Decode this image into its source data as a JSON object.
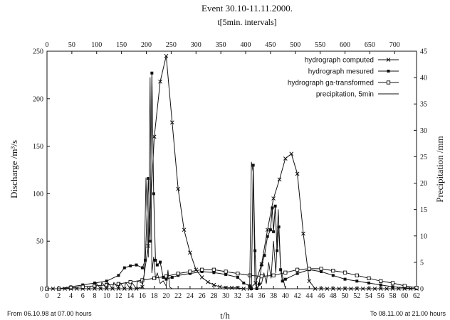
{
  "chart_data": {
    "type": "line",
    "title": "Event 30.10-11.11.2000.",
    "top_axis_label": "t[5min. intervals]",
    "xlabel": "t/h",
    "ylabel_left": "Discharge /m³/s",
    "ylabel_right": "Precipitation /mm",
    "note_left": "From 06.10.98 at 07.00 hours",
    "note_right": "To 08.11.00 at 21.00 hours",
    "xlim": [
      0,
      62
    ],
    "ylim_left": [
      0,
      250
    ],
    "ylim_right": [
      0,
      45
    ],
    "top_xlim": [
      0,
      744
    ],
    "x_ticks": [
      0,
      2,
      4,
      6,
      8,
      10,
      12,
      14,
      16,
      18,
      20,
      22,
      24,
      26,
      28,
      30,
      32,
      34,
      36,
      38,
      40,
      42,
      44,
      46,
      48,
      50,
      52,
      54,
      56,
      58,
      60,
      62
    ],
    "top_ticks": [
      0,
      50,
      100,
      150,
      200,
      250,
      300,
      350,
      400,
      450,
      500,
      550,
      600,
      650,
      700
    ],
    "left_ticks": [
      0,
      50,
      100,
      150,
      200,
      250
    ],
    "right_ticks": [
      0,
      5,
      10,
      15,
      20,
      25,
      30,
      35,
      40,
      45
    ],
    "grid": false,
    "legend_position": "top-right",
    "series": [
      {
        "name": "hydrograph computed",
        "axis": "left",
        "marker": "x",
        "x": [
          0,
          1,
          2,
          3,
          4,
          5,
          6,
          7,
          8,
          9,
          10,
          11,
          12,
          13,
          14,
          15,
          16,
          17,
          18,
          19,
          20,
          21,
          22,
          23,
          24,
          25,
          26,
          27,
          28,
          29,
          30,
          31,
          32,
          33,
          34,
          35,
          36,
          37,
          38,
          39,
          40,
          41,
          42,
          43,
          44,
          45,
          46,
          47,
          48,
          49,
          50,
          51,
          52,
          53,
          54,
          55,
          56,
          57,
          58,
          59,
          60,
          61,
          62
        ],
        "y": [
          0,
          0,
          0,
          0,
          0,
          0,
          0,
          0,
          0,
          0,
          0,
          0,
          0,
          0,
          0,
          0,
          2,
          45,
          160,
          218,
          245,
          175,
          105,
          62,
          38,
          20,
          12,
          7,
          4,
          2,
          1,
          1,
          1,
          0,
          0,
          6,
          26,
          62,
          95,
          115,
          137,
          142,
          121,
          58,
          8,
          0,
          0,
          0,
          0,
          0,
          0,
          0,
          0,
          0,
          0,
          0,
          0,
          0,
          0,
          0,
          0,
          0,
          0
        ]
      },
      {
        "name": "hydrograph mesured",
        "axis": "left",
        "marker": "square-filled",
        "x": [
          0,
          2,
          4,
          6,
          8,
          10,
          12,
          13,
          14,
          15,
          16,
          16.5,
          17,
          17.3,
          17.6,
          17.9,
          18.2,
          18.5,
          19,
          19.5,
          20,
          21,
          22,
          24,
          26,
          28,
          30,
          32,
          33,
          34,
          34.3,
          34.6,
          34.9,
          35.2,
          35.6,
          36,
          36.5,
          37,
          37.5,
          37.8,
          38,
          38.3,
          38.6,
          38.9,
          39.2,
          39.5,
          40,
          42,
          44,
          46,
          48,
          50,
          52,
          54,
          56,
          58,
          60,
          62
        ],
        "y": [
          0,
          0,
          2,
          4,
          6,
          8,
          14,
          22,
          24,
          25,
          22,
          30,
          116,
          50,
          227,
          100,
          30,
          25,
          28,
          12,
          10,
          12,
          14,
          16,
          18,
          17,
          15,
          12,
          6,
          3,
          0,
          130,
          40,
          0,
          5,
          25,
          35,
          55,
          62,
          85,
          60,
          87,
          40,
          65,
          20,
          8,
          10,
          16,
          20,
          18,
          14,
          10,
          8,
          6,
          4,
          2,
          1,
          0
        ]
      },
      {
        "name": "hydrograph ga-transformed",
        "axis": "left",
        "marker": "square-open",
        "x": [
          0,
          2,
          4,
          6,
          8,
          10,
          12,
          14,
          16,
          18,
          20,
          22,
          24,
          26,
          28,
          30,
          32,
          34,
          36,
          38,
          40,
          42,
          44,
          46,
          48,
          50,
          52,
          54,
          56,
          58,
          60,
          62
        ],
        "y": [
          0,
          0,
          1,
          2,
          3,
          4,
          5,
          7,
          9,
          11,
          13,
          16,
          18,
          20,
          20,
          18,
          16,
          14,
          13,
          14,
          17,
          20,
          21,
          21,
          19,
          17,
          14,
          11,
          8,
          6,
          3,
          1
        ]
      },
      {
        "name": "precipitation, 5min",
        "axis": "right",
        "marker": "none",
        "x": [
          0,
          2,
          4,
          6,
          8,
          8.2,
          9,
          9.2,
          10,
          10.2,
          11,
          11.2,
          12,
          12.2,
          13,
          13.2,
          14,
          14.2,
          15,
          15.2,
          16,
          16.3,
          16.6,
          17,
          17.3,
          17.6,
          17.9,
          18.2,
          18.5,
          19,
          19.5,
          20,
          20.3,
          20.6,
          21,
          22,
          24,
          26,
          28,
          30,
          32,
          34,
          34.3,
          34.6,
          34.9,
          35.2,
          35.5,
          36,
          36.4,
          36.8,
          37.2,
          37.6,
          38,
          38.4,
          38.8,
          39.2,
          39.6,
          40,
          42,
          44,
          46,
          48,
          50,
          52,
          54,
          56,
          58,
          60,
          62
        ],
        "y": [
          0,
          0,
          0,
          0,
          0,
          1.2,
          0,
          1.2,
          0,
          1.2,
          0,
          1.2,
          0,
          1.2,
          0,
          1.2,
          0,
          1.2,
          0,
          1.5,
          1,
          2.5,
          21,
          6,
          40,
          3,
          6,
          2,
          3,
          1,
          1.5,
          0.5,
          3.5,
          0.3,
          0,
          0,
          0,
          0,
          0,
          0,
          0,
          0,
          24,
          22,
          1,
          0,
          0.5,
          1,
          3,
          1,
          5,
          2,
          9,
          3,
          15,
          4,
          2,
          0,
          0,
          0,
          0,
          0,
          0,
          0,
          0,
          0,
          0,
          0,
          0
        ]
      }
    ]
  }
}
